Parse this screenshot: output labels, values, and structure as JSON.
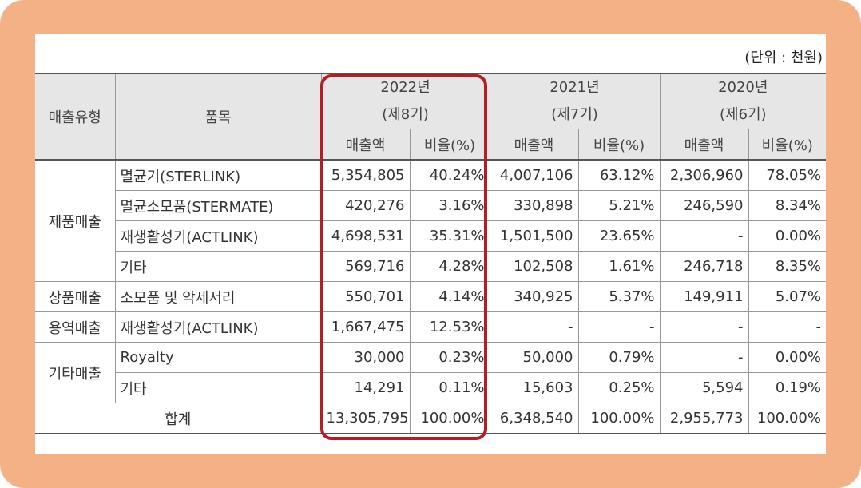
{
  "unit_label": "(단위 : 천원)",
  "headers": {
    "type": "매출유형",
    "item": "품목",
    "years": [
      {
        "year": "2022년",
        "period": "(제8기)"
      },
      {
        "year": "2021년",
        "period": "(제7기)"
      },
      {
        "year": "2020년",
        "period": "(제6기)"
      }
    ],
    "sales": "매출액",
    "ratio": "비율(%)"
  },
  "groups": [
    {
      "type": "제품매출",
      "rows": [
        {
          "item": "멸균기(STERLINK)",
          "values": [
            "5,354,805",
            "40.24%",
            "4,007,106",
            "63.12%",
            "2,306,960",
            "78.05%"
          ]
        },
        {
          "item": "멸균소모품(STERMATE)",
          "values": [
            "420,276",
            "3.16%",
            "330,898",
            "5.21%",
            "246,590",
            "8.34%"
          ]
        },
        {
          "item": "재생활성기(ACTLINK)",
          "values": [
            "4,698,531",
            "35.31%",
            "1,501,500",
            "23.65%",
            "-",
            "0.00%"
          ]
        },
        {
          "item": "기타",
          "values": [
            "569,716",
            "4.28%",
            "102,508",
            "1.61%",
            "246,718",
            "8.35%"
          ]
        }
      ]
    },
    {
      "type": "상품매출",
      "rows": [
        {
          "item": "소모품 및 악세서리",
          "values": [
            "550,701",
            "4.14%",
            "340,925",
            "5.37%",
            "149,911",
            "5.07%"
          ]
        }
      ]
    },
    {
      "type": "용역매출",
      "rows": [
        {
          "item": "재생활성기(ACTLINK)",
          "values": [
            "1,667,475",
            "12.53%",
            "-",
            "-",
            "-",
            "-"
          ]
        }
      ]
    },
    {
      "type": "기타매출",
      "rows": [
        {
          "item": "Royalty",
          "values": [
            "30,000",
            "0.23%",
            "50,000",
            "0.79%",
            "-",
            "0.00%"
          ]
        },
        {
          "item": "기타",
          "values": [
            "14,291",
            "0.11%",
            "15,603",
            "0.25%",
            "5,594",
            "0.19%"
          ]
        }
      ]
    }
  ],
  "total": {
    "label": "합계",
    "values": [
      "13,305,795",
      "100.00%",
      "6,348,540",
      "100.00%",
      "2,955,773",
      "100.00%"
    ]
  },
  "colors": {
    "frame": "#f3b185",
    "header_bg": "#e6e6e6",
    "highlight_border": "#b51d24"
  }
}
